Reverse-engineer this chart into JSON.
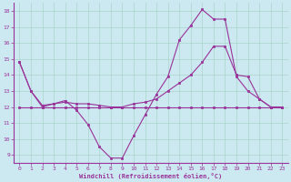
{
  "xlabel": "Windchill (Refroidissement éolien,°C)",
  "background_color": "#cce8f0",
  "grid_color": "#aad4cc",
  "line_color": "#993399",
  "xmin": -0.5,
  "xmax": 23.5,
  "ymin": 8.5,
  "ymax": 18.5,
  "yticks": [
    9,
    10,
    11,
    12,
    13,
    14,
    15,
    16,
    17,
    18
  ],
  "xticks": [
    0,
    1,
    2,
    3,
    4,
    5,
    6,
    7,
    8,
    9,
    10,
    11,
    12,
    13,
    14,
    15,
    16,
    17,
    18,
    19,
    20,
    21,
    22,
    23
  ],
  "line1_x": [
    0,
    1,
    2,
    3,
    4,
    5,
    6,
    7,
    8,
    9,
    10,
    11,
    12,
    13,
    14,
    15,
    16,
    17,
    18,
    19,
    20,
    21,
    22,
    23
  ],
  "line1_y": [
    14.8,
    13.0,
    12.0,
    12.2,
    12.4,
    11.8,
    10.9,
    9.5,
    8.8,
    8.8,
    10.2,
    11.5,
    12.8,
    13.9,
    16.2,
    17.1,
    18.1,
    17.5,
    17.5,
    13.9,
    13.0,
    12.5,
    12.0,
    12.0
  ],
  "line2_x": [
    0,
    1,
    2,
    3,
    4,
    5,
    6,
    7,
    8,
    9,
    10,
    11,
    12,
    13,
    14,
    15,
    16,
    17,
    18,
    19,
    20,
    21,
    22,
    23
  ],
  "line2_y": [
    14.8,
    13.0,
    12.1,
    12.2,
    12.3,
    12.2,
    12.2,
    12.1,
    12.0,
    12.0,
    12.2,
    12.3,
    12.5,
    13.0,
    13.5,
    14.0,
    14.8,
    15.8,
    15.8,
    14.0,
    13.9,
    12.5,
    12.0,
    12.0
  ],
  "line3_x": [
    0,
    1,
    2,
    3,
    4,
    5,
    6,
    7,
    8,
    9,
    10,
    11,
    12,
    13,
    14,
    15,
    16,
    17,
    18,
    19,
    20,
    21,
    22,
    23
  ],
  "line3_y": [
    12.0,
    12.0,
    12.0,
    12.0,
    12.0,
    12.0,
    12.0,
    12.0,
    12.0,
    12.0,
    12.0,
    12.0,
    12.0,
    12.0,
    12.0,
    12.0,
    12.0,
    12.0,
    12.0,
    12.0,
    12.0,
    12.0,
    12.0,
    12.0
  ]
}
